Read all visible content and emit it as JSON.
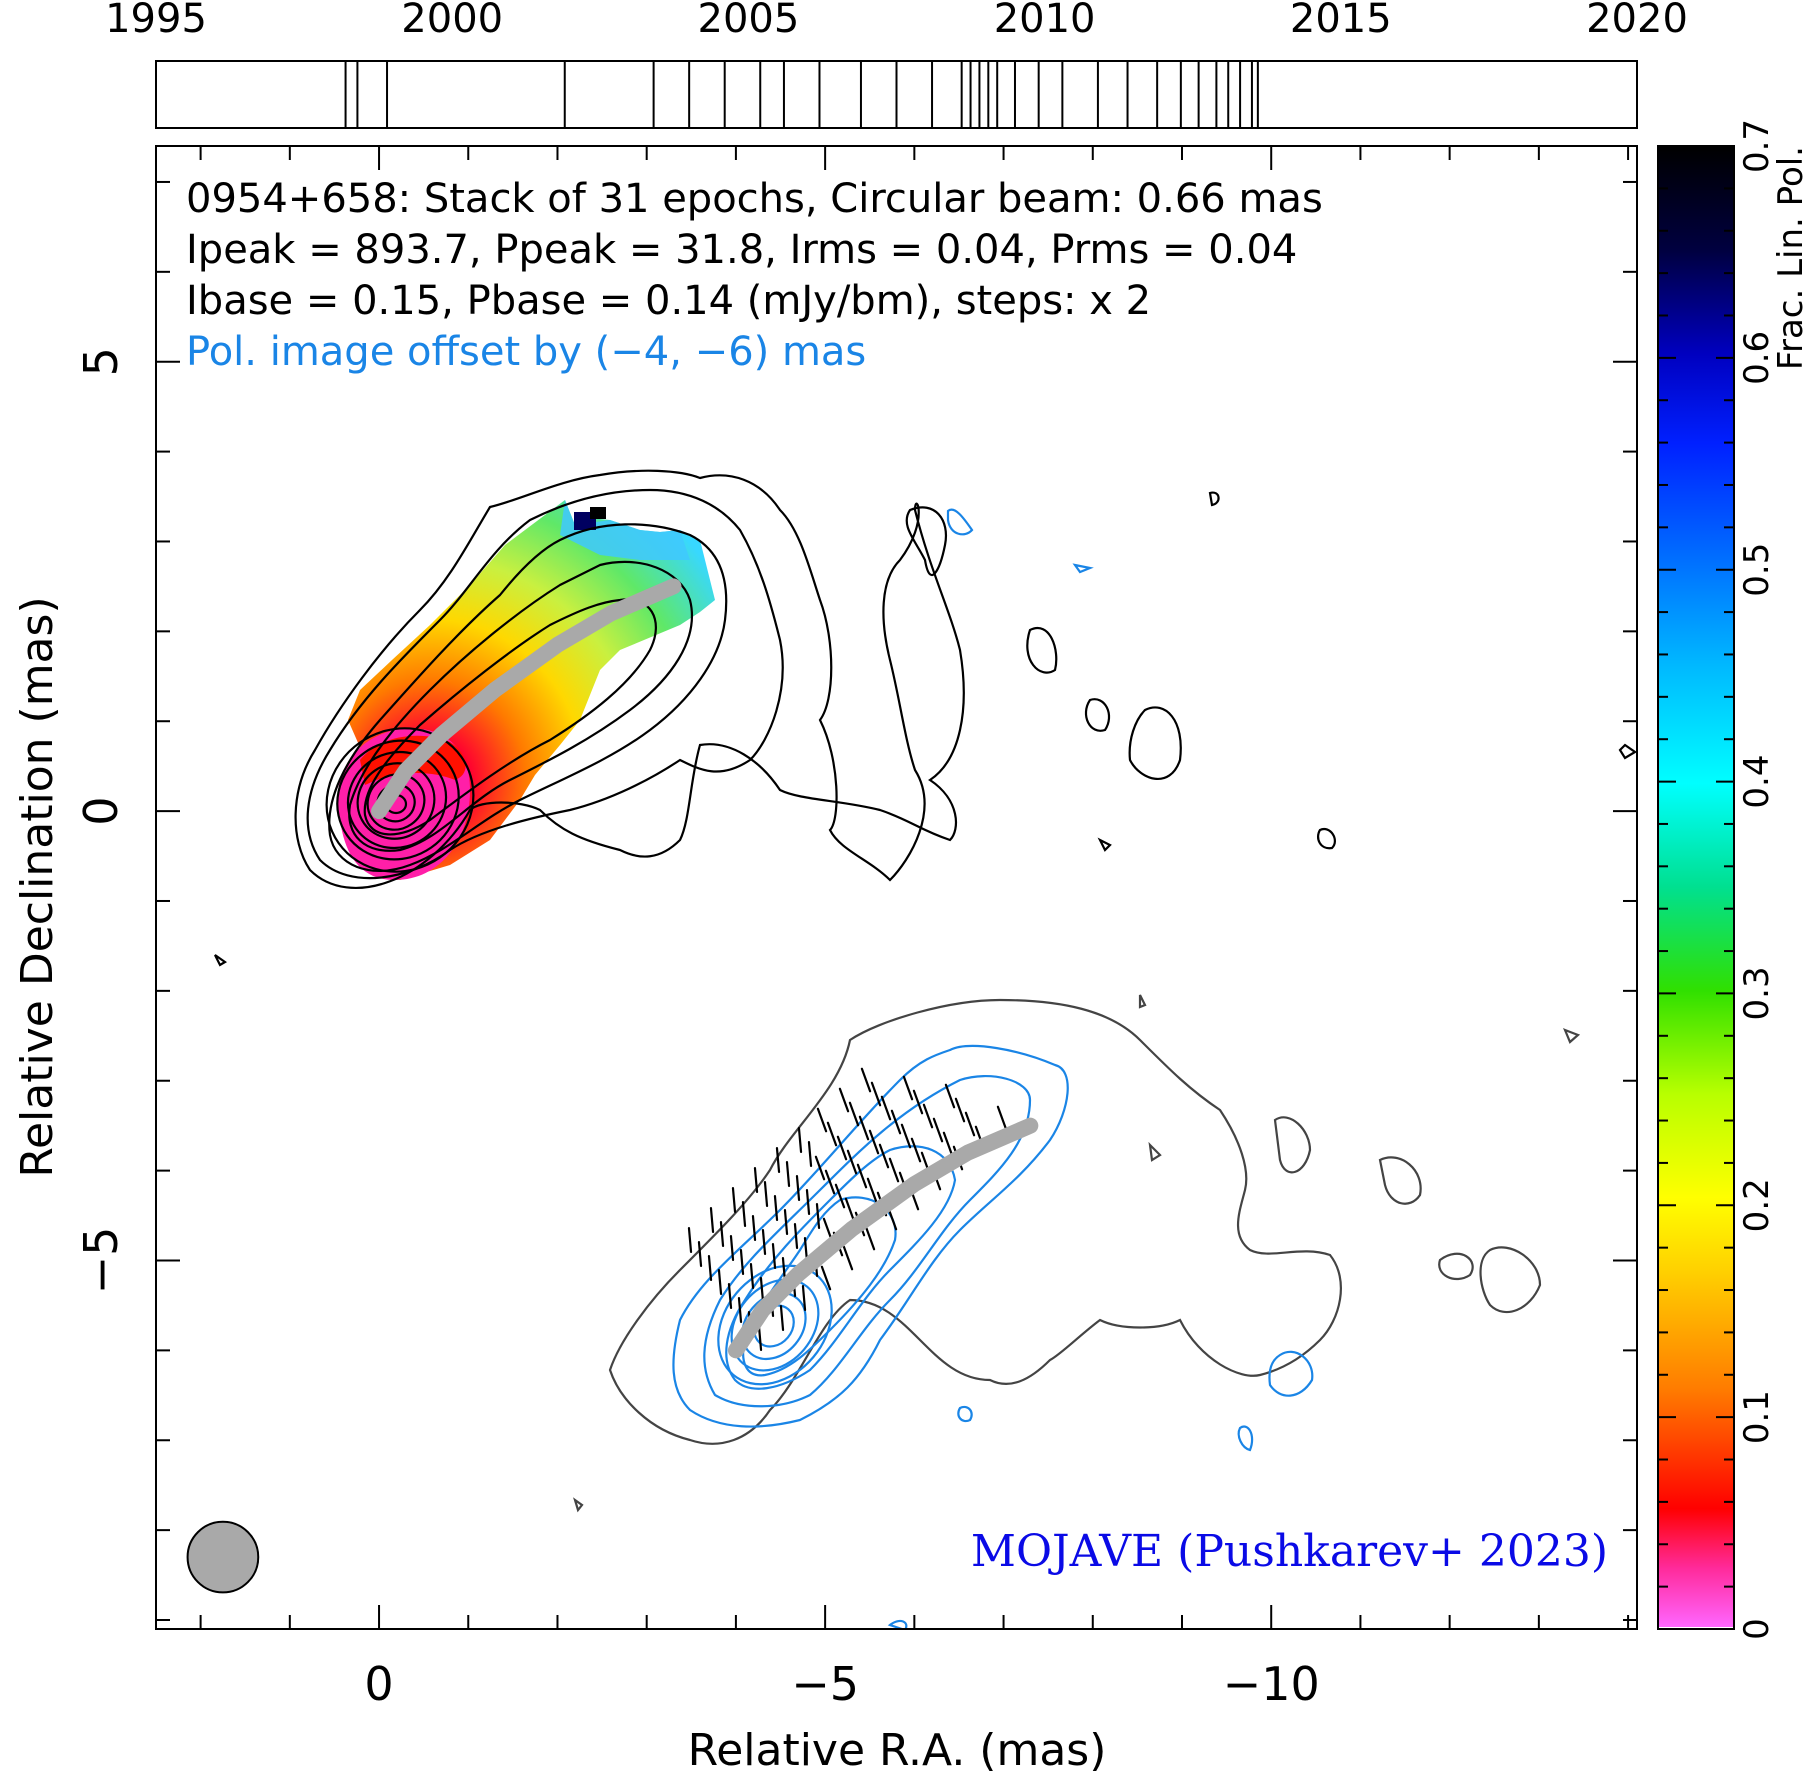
{
  "chart_data": {
    "type": "scatter",
    "header": {
      "line1": "0954+658: Stack of 31 epochs, Circular beam: 0.66 mas",
      "line2": "Ipeak = 893.7, Ppeak = 31.8, Irms = 0.04, Prms = 0.04",
      "line3": "Ibase = 0.15, Pbase = 0.14 (mJy/bm), steps: x 2",
      "line4": "Pol. image offset by (−4, −6) mas"
    },
    "credit": "MOJAVE (Pushkarev+ 2023)",
    "xlabel": "Relative R.A. (mas)",
    "ylabel": "Relative Declination (mas)",
    "xlim": [
      2.5,
      -14.1
    ],
    "ylim": [
      -9.1,
      7.4
    ],
    "x_ticks": [
      {
        "v": 0,
        "label": "0"
      },
      {
        "v": -5,
        "label": "−5"
      },
      {
        "v": -10,
        "label": "−10"
      }
    ],
    "y_ticks": [
      {
        "v": 5,
        "label": "5"
      },
      {
        "v": 0,
        "label": "0"
      },
      {
        "v": -5,
        "label": "−5"
      }
    ],
    "epoch_timeline": {
      "range": [
        1995,
        2020
      ],
      "tick_labels": [
        "1995",
        "2000",
        "2005",
        "2010",
        "2015",
        "2020"
      ],
      "epochs": [
        1998.2,
        1998.4,
        1998.9,
        2001.9,
        2003.4,
        2004.0,
        2004.6,
        2005.2,
        2005.6,
        2006.2,
        2006.9,
        2007.5,
        2008.1,
        2008.6,
        2008.75,
        2008.9,
        2009.05,
        2009.2,
        2009.5,
        2009.9,
        2010.3,
        2010.9,
        2011.4,
        2011.9,
        2012.3,
        2012.6,
        2012.9,
        2013.1,
        2013.3,
        2013.5,
        2013.6
      ]
    },
    "colorbar": {
      "label": "Frac. Lin. Pol.",
      "range": [
        0,
        0.7
      ],
      "tick_labels": [
        "0",
        "0.1",
        "0.2",
        "0.3",
        "0.4",
        "0.5",
        "0.6",
        "0.7"
      ]
    },
    "ridge_line": [
      {
        "x": 0,
        "y": 0
      },
      {
        "x": -0.3,
        "y": 0.45
      },
      {
        "x": -0.7,
        "y": 0.85
      },
      {
        "x": -1.3,
        "y": 1.35
      },
      {
        "x": -2.0,
        "y": 1.85
      },
      {
        "x": -2.6,
        "y": 2.2
      },
      {
        "x": -3.3,
        "y": 2.5
      }
    ],
    "beam_fwhm_mas": 0.66,
    "colors": {
      "intensity_contour": "#000000",
      "pol_contour": "#1a85e6",
      "offset_total_contour": "#444444",
      "ridge": "#a9a9a9",
      "credit": "#0a0ae6",
      "offset_note": "#1a85e6",
      "beam": "#a9a9a9"
    }
  }
}
